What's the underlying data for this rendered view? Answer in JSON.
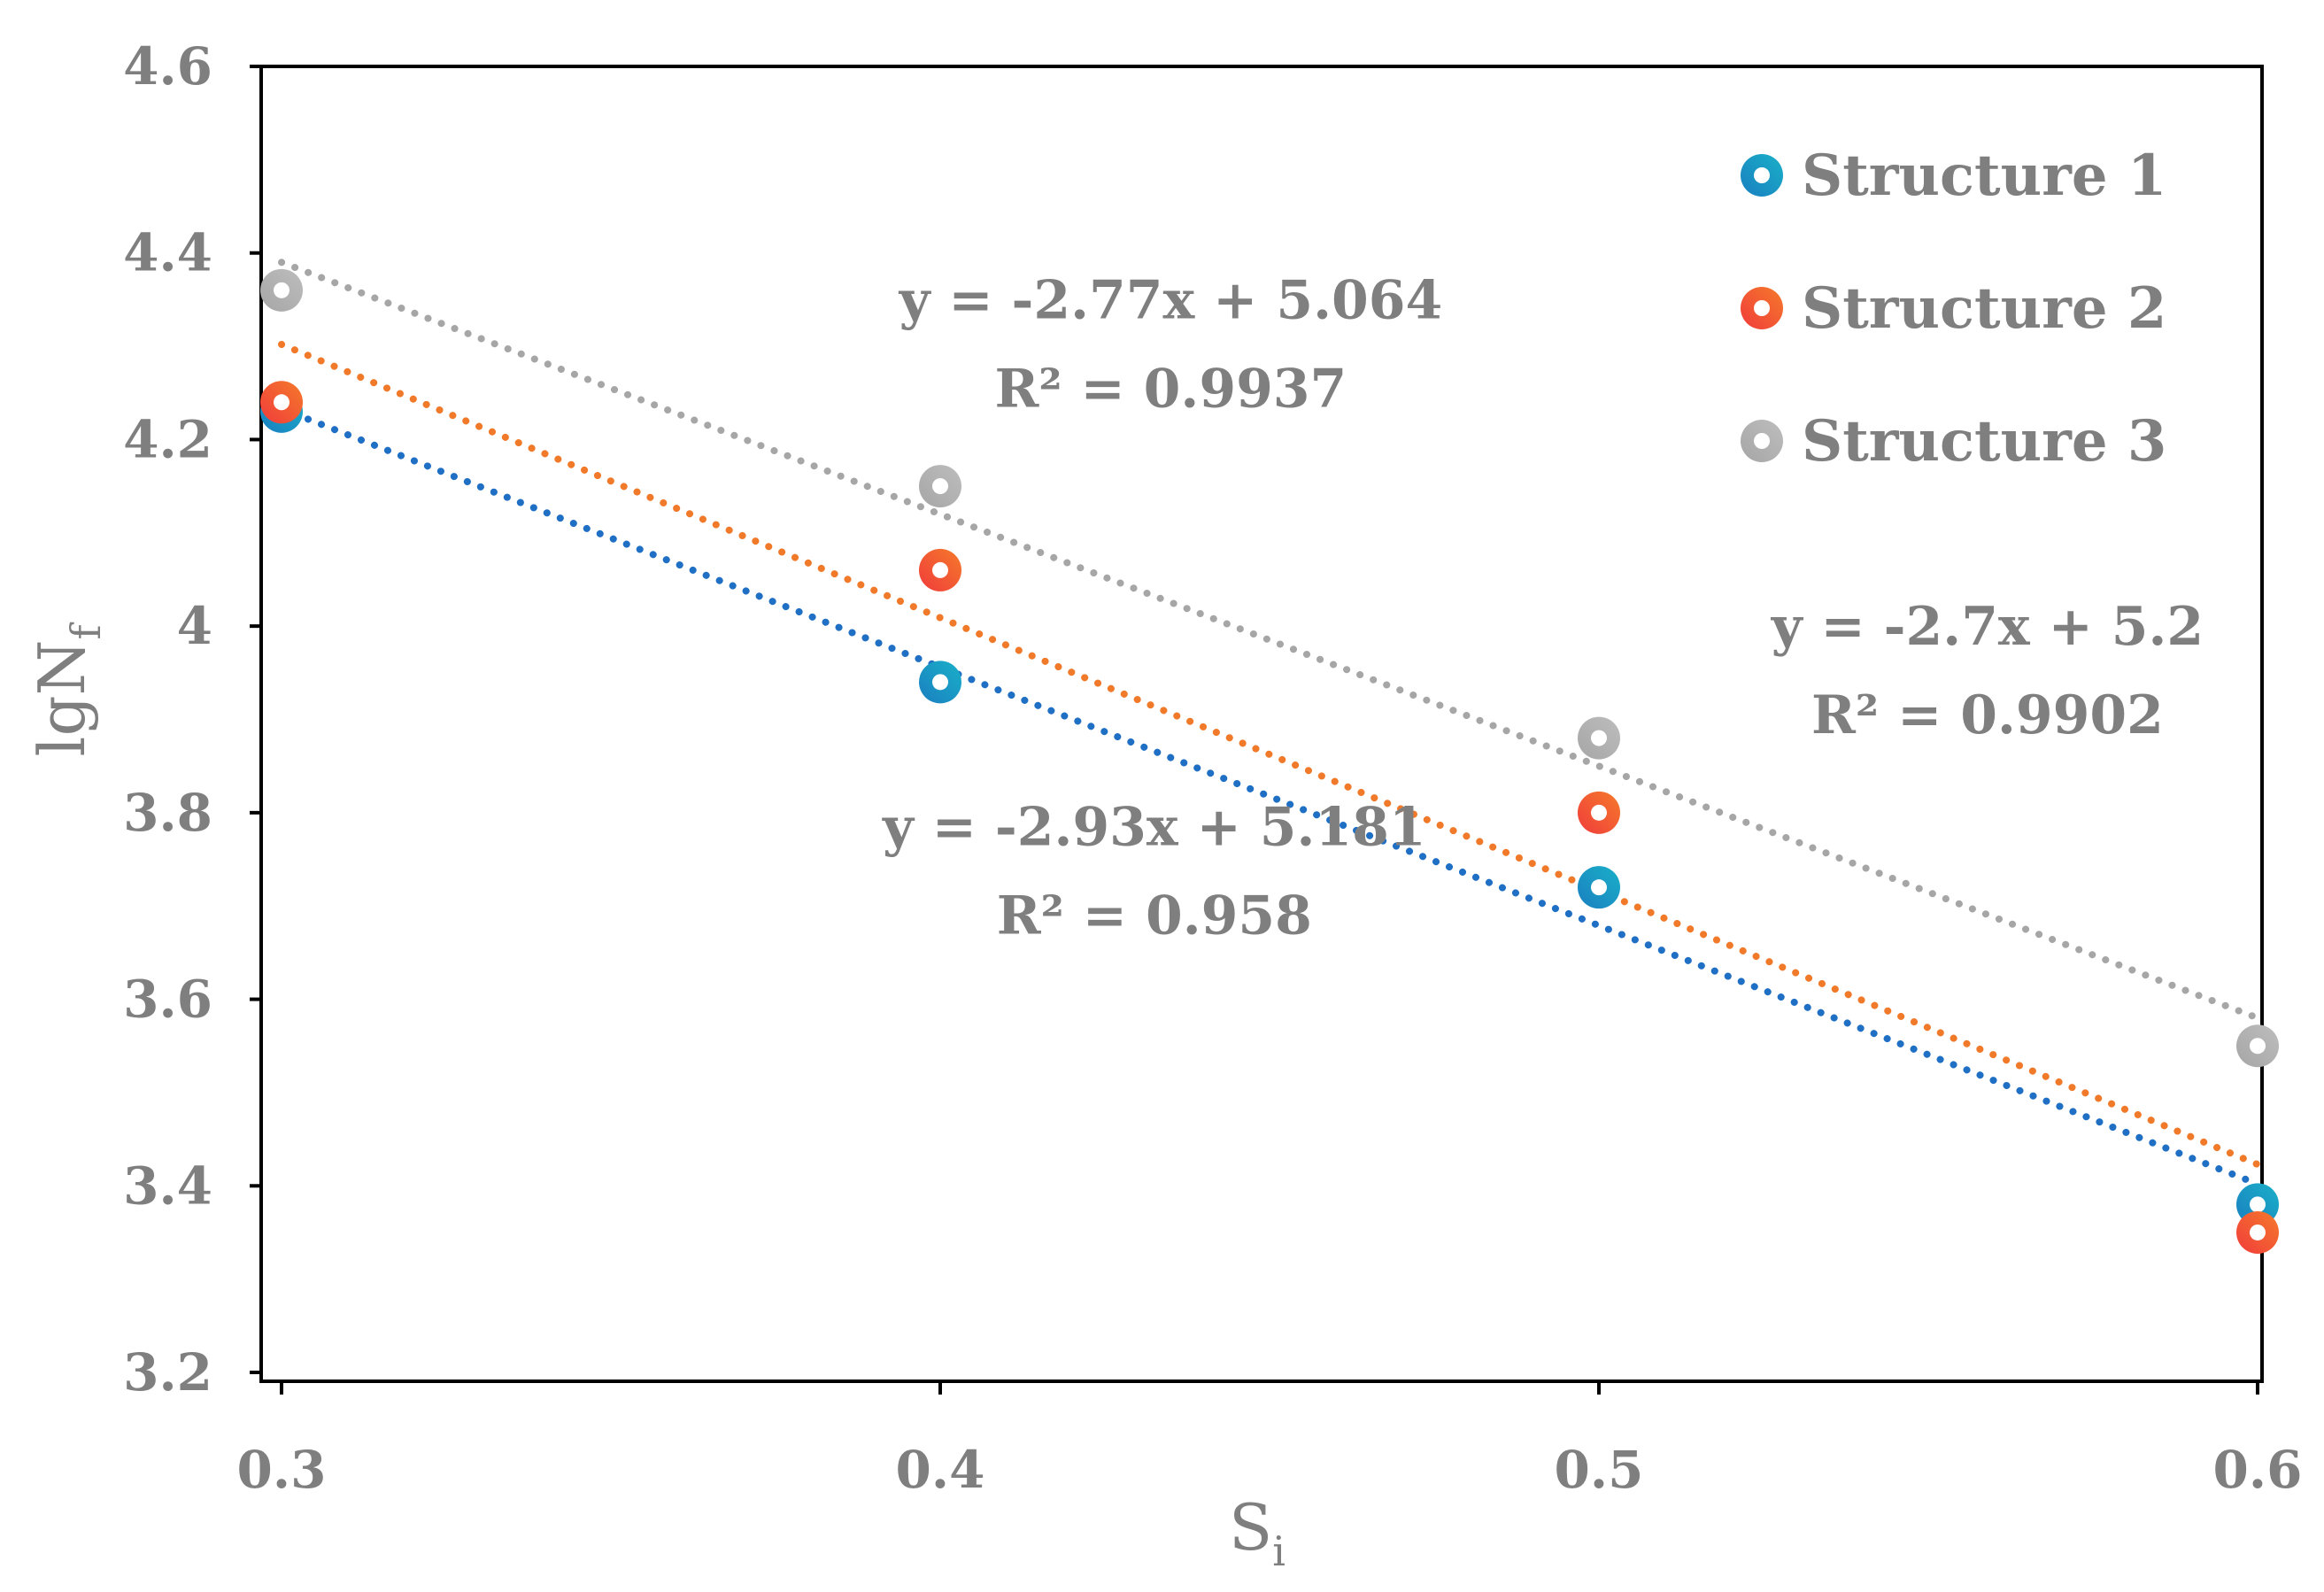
{
  "chart_data": {
    "type": "scatter",
    "title": "",
    "xlabel": "S",
    "xlabel_sub": "i",
    "ylabel": "lgN",
    "ylabel_sub": "f",
    "xlim": [
      0.3,
      0.6
    ],
    "ylim": [
      3.2,
      4.6
    ],
    "x_ticks": [
      "0.3",
      "0.4",
      "0.5",
      "0.6"
    ],
    "y_ticks": [
      "3.2",
      "3.4",
      "3.6",
      "3.8",
      "4",
      "4.2",
      "4.4",
      "4.6"
    ],
    "x_tick_values": [
      0.3,
      0.4,
      0.5,
      0.6
    ],
    "y_tick_values": [
      3.2,
      3.4,
      3.6,
      3.8,
      4.0,
      4.2,
      4.4,
      4.6
    ],
    "grid": false,
    "legend_position": "top-right",
    "series": [
      {
        "name": "Structure 1",
        "x": [
          0.3,
          0.4,
          0.5,
          0.6
        ],
        "y": [
          4.23,
          3.94,
          3.72,
          3.38
        ],
        "color": "#1a7fc0",
        "color_light": "#1ab0c8",
        "trendline": {
          "slope": -2.77,
          "intercept": 5.064,
          "color": "#1f6fc4"
        }
      },
      {
        "name": "Structure 2",
        "x": [
          0.3,
          0.4,
          0.5,
          0.6
        ],
        "y": [
          4.24,
          4.06,
          3.8,
          3.35
        ],
        "color": "#f03c3c",
        "color_light": "#f57a2a",
        "trendline": {
          "slope": -2.93,
          "intercept": 5.181,
          "color": "#f07a2a"
        }
      },
      {
        "name": "Structure 3",
        "x": [
          0.3,
          0.4,
          0.5,
          0.6
        ],
        "y": [
          4.36,
          4.15,
          3.88,
          3.55
        ],
        "color": "#a6a6a6",
        "color_light": "#bdbdbd",
        "trendline": {
          "slope": -2.7,
          "intercept": 5.2,
          "color": "#a6a6a6"
        }
      }
    ],
    "annotations": [
      {
        "equation": "y = -2.77x + 5.064",
        "r2": "R² = 0.9937",
        "anchor_x": 0.435,
        "anchor_y": 4.33
      },
      {
        "equation": "y = -2.93x + 5.181",
        "r2": "R² = 0.958",
        "anchor_x": 0.4325,
        "anchor_y": 3.765
      },
      {
        "equation": "y = -2.7x + 5.2",
        "r2": "R² = 0.9902",
        "anchor_x": 0.559,
        "anchor_y": 3.98
      }
    ]
  }
}
